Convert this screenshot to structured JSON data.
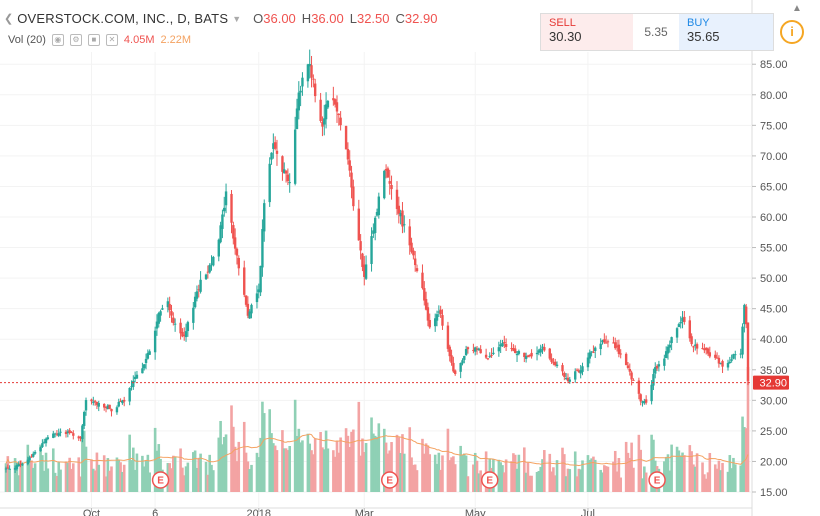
{
  "header": {
    "symbol_title": "OVERSTOCK.COM, INC., D, BATS",
    "open_label": "O",
    "open_value": "36.00",
    "high_label": "H",
    "high_value": "36.00",
    "low_label": "L",
    "low_value": "32.50",
    "close_label": "C",
    "close_value": "32.90"
  },
  "volume_indicator": {
    "label": "Vol (20)",
    "value1": "4.05M",
    "value2": "2.22M"
  },
  "trade_panel": {
    "sell_label": "SELL",
    "sell_price": "30.30",
    "spread": "5.35",
    "buy_label": "BUY",
    "buy_price": "35.65"
  },
  "colors": {
    "up": "#26a69a",
    "down": "#ef5350",
    "volume_up": "#8fd0b5",
    "volume_down": "#f3a3a3",
    "volume_ma": "#f4a261",
    "last_price": "#e53935"
  },
  "chart_data": {
    "type": "candlestick",
    "title": "OVERSTOCK.COM, INC., D, BATS",
    "ylim": [
      15,
      87
    ],
    "y_ticks": [
      "15.00",
      "20.00",
      "25.00",
      "30.00",
      "35.00",
      "40.00",
      "45.00",
      "50.00",
      "55.00",
      "60.00",
      "65.00",
      "70.00",
      "75.00",
      "80.00",
      "85.00"
    ],
    "x_ticks": [
      {
        "label": "Oct",
        "date": "2017-10-02"
      },
      {
        "label": "6",
        "date": "2017-11-06"
      },
      {
        "label": "2018",
        "date": "2018-01-02"
      },
      {
        "label": "Mar",
        "date": "2018-03-01"
      },
      {
        "label": "May",
        "date": "2018-05-01"
      },
      {
        "label": "Jul",
        "date": "2018-07-02"
      }
    ],
    "last_price": "32.90",
    "earnings_markers": [
      {
        "label": "E",
        "date": "2017-11-09"
      },
      {
        "label": "E",
        "date": "2018-03-15"
      },
      {
        "label": "E",
        "date": "2018-05-09"
      },
      {
        "label": "E",
        "date": "2018-08-09"
      }
    ],
    "close_path": [
      [
        "2017-08-16",
        18.8
      ],
      [
        "2017-08-25",
        19.5
      ],
      [
        "2017-09-01",
        21.5
      ],
      [
        "2017-09-08",
        24.0
      ],
      [
        "2017-09-15",
        24.8
      ],
      [
        "2017-09-22",
        24.5
      ],
      [
        "2017-09-26",
        23.5
      ],
      [
        "2017-09-29",
        30.0
      ],
      [
        "2017-10-06",
        29.5
      ],
      [
        "2017-10-13",
        28.5
      ],
      [
        "2017-10-20",
        30.0
      ],
      [
        "2017-10-27",
        34.0
      ],
      [
        "2017-11-03",
        38.0
      ],
      [
        "2017-11-08",
        44.0
      ],
      [
        "2017-11-13",
        46.0
      ],
      [
        "2017-11-17",
        42.0
      ],
      [
        "2017-11-22",
        40.0
      ],
      [
        "2017-11-29",
        48.0
      ],
      [
        "2017-12-06",
        52.0
      ],
      [
        "2017-12-12",
        58.0
      ],
      [
        "2017-12-15",
        64.0
      ],
      [
        "2017-12-20",
        55.0
      ],
      [
        "2017-12-27",
        44.0
      ],
      [
        "2018-01-02",
        48.0
      ],
      [
        "2018-01-05",
        62.0
      ],
      [
        "2018-01-10",
        73.0
      ],
      [
        "2018-01-15",
        68.0
      ],
      [
        "2018-01-19",
        66.0
      ],
      [
        "2018-01-24",
        80.0
      ],
      [
        "2018-01-29",
        86.0
      ],
      [
        "2018-02-01",
        82.0
      ],
      [
        "2018-02-06",
        75.0
      ],
      [
        "2018-02-09",
        80.0
      ],
      [
        "2018-02-14",
        78.0
      ],
      [
        "2018-02-20",
        70.0
      ],
      [
        "2018-02-23",
        62.0
      ],
      [
        "2018-03-01",
        50.0
      ],
      [
        "2018-03-06",
        58.0
      ],
      [
        "2018-03-12",
        68.0
      ],
      [
        "2018-03-16",
        65.0
      ],
      [
        "2018-03-21",
        60.0
      ],
      [
        "2018-03-26",
        56.0
      ],
      [
        "2018-04-02",
        48.0
      ],
      [
        "2018-04-06",
        42.0
      ],
      [
        "2018-04-11",
        45.0
      ],
      [
        "2018-04-16",
        38.0
      ],
      [
        "2018-04-20",
        34.0
      ],
      [
        "2018-04-26",
        38.0
      ],
      [
        "2018-05-02",
        38.5
      ],
      [
        "2018-05-09",
        37.0
      ],
      [
        "2018-05-16",
        39.0
      ],
      [
        "2018-05-23",
        38.0
      ],
      [
        "2018-05-31",
        37.0
      ],
      [
        "2018-06-07",
        38.5
      ],
      [
        "2018-06-14",
        36.0
      ],
      [
        "2018-06-21",
        33.0
      ],
      [
        "2018-06-27",
        35.0
      ],
      [
        "2018-07-03",
        37.5
      ],
      [
        "2018-07-10",
        39.5
      ],
      [
        "2018-07-17",
        39.0
      ],
      [
        "2018-07-24",
        35.0
      ],
      [
        "2018-07-31",
        30.0
      ],
      [
        "2018-08-03",
        29.5
      ],
      [
        "2018-08-08",
        35.0
      ],
      [
        "2018-08-13",
        37.0
      ],
      [
        "2018-08-17",
        40.5
      ],
      [
        "2018-08-23",
        43.0
      ],
      [
        "2018-08-29",
        39.0
      ],
      [
        "2018-09-04",
        38.0
      ],
      [
        "2018-09-10",
        37.0
      ],
      [
        "2018-09-14",
        35.5
      ],
      [
        "2018-09-19",
        37.0
      ],
      [
        "2018-09-24",
        38.0
      ],
      [
        "2018-09-26",
        46.0
      ],
      [
        "2018-09-27",
        42.0
      ],
      [
        "2018-09-28",
        32.9
      ]
    ]
  }
}
